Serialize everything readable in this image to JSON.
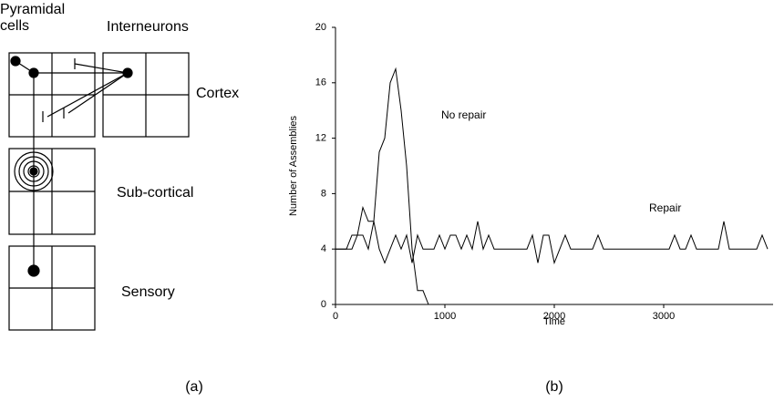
{
  "diagram": {
    "pyramidal": "Pyramidal cells",
    "interneurons": "Interneurons",
    "cortex": "Cortex",
    "subcortical": "Sub-cortical",
    "sensory": "Sensory"
  },
  "panel_labels": [
    "(a)",
    "(b)"
  ],
  "chart_data": {
    "type": "line",
    "xlabel": "Time",
    "ylabel": "Number of Assemblies",
    "x": [
      0,
      50,
      100,
      150,
      200,
      250,
      300,
      350,
      400,
      450,
      500,
      550,
      600,
      650,
      700,
      750,
      800,
      850,
      900,
      950,
      1000,
      1050,
      1100,
      1150,
      1200,
      1250,
      1300,
      1350,
      1400,
      1450,
      1500,
      1550,
      1600,
      1650,
      1700,
      1750,
      1800,
      1850,
      1900,
      1950,
      2000,
      2050,
      2100,
      2150,
      2200,
      2250,
      2300,
      2350,
      2400,
      2450,
      2500,
      2550,
      2600,
      2650,
      2700,
      2750,
      2800,
      2850,
      2900,
      2950,
      3000,
      3050,
      3100,
      3150,
      3200,
      3250,
      3300,
      3350,
      3400,
      3450,
      3500,
      3550,
      3600,
      3650,
      3700,
      3750,
      3800,
      3850,
      3900,
      3950
    ],
    "series": [
      {
        "name": "No repair",
        "color": "#000000",
        "values": [
          4,
          4,
          4,
          5,
          5,
          7,
          6,
          6,
          11,
          12,
          16,
          17,
          14,
          10,
          4,
          1,
          1,
          0,
          0,
          0,
          0,
          0,
          0,
          0,
          0,
          0,
          0,
          0,
          0,
          0,
          0,
          0,
          0,
          0,
          0,
          0,
          0,
          0,
          0,
          0,
          0,
          0,
          0,
          0,
          0,
          0,
          0,
          0,
          0,
          0,
          0,
          0,
          0,
          0,
          0,
          0,
          0,
          0,
          0,
          0,
          0,
          0,
          0,
          0,
          0,
          0,
          0,
          0,
          0,
          0,
          0,
          0,
          0,
          0,
          0,
          0,
          0,
          0,
          0,
          0
        ]
      },
      {
        "name": "Repair",
        "color": "#000000",
        "values": [
          4,
          4,
          4,
          4,
          5,
          5,
          4,
          6,
          4,
          3,
          4,
          5,
          4,
          5,
          3,
          5,
          4,
          4,
          4,
          5,
          4,
          5,
          5,
          4,
          5,
          4,
          6,
          4,
          5,
          4,
          4,
          4,
          4,
          4,
          4,
          4,
          5,
          3,
          5,
          5,
          3,
          4,
          5,
          4,
          4,
          4,
          4,
          4,
          5,
          4,
          4,
          4,
          4,
          4,
          4,
          4,
          4,
          4,
          4,
          4,
          4,
          4,
          5,
          4,
          4,
          5,
          4,
          4,
          4,
          4,
          4,
          6,
          4,
          4,
          4,
          4,
          4,
          4,
          5,
          4
        ]
      }
    ],
    "xlim": [
      0,
      4000
    ],
    "ylim": [
      0,
      20
    ],
    "xticks": [
      0,
      1000,
      2000,
      3000
    ],
    "yticks": [
      0,
      4,
      8,
      12,
      16,
      20
    ]
  }
}
